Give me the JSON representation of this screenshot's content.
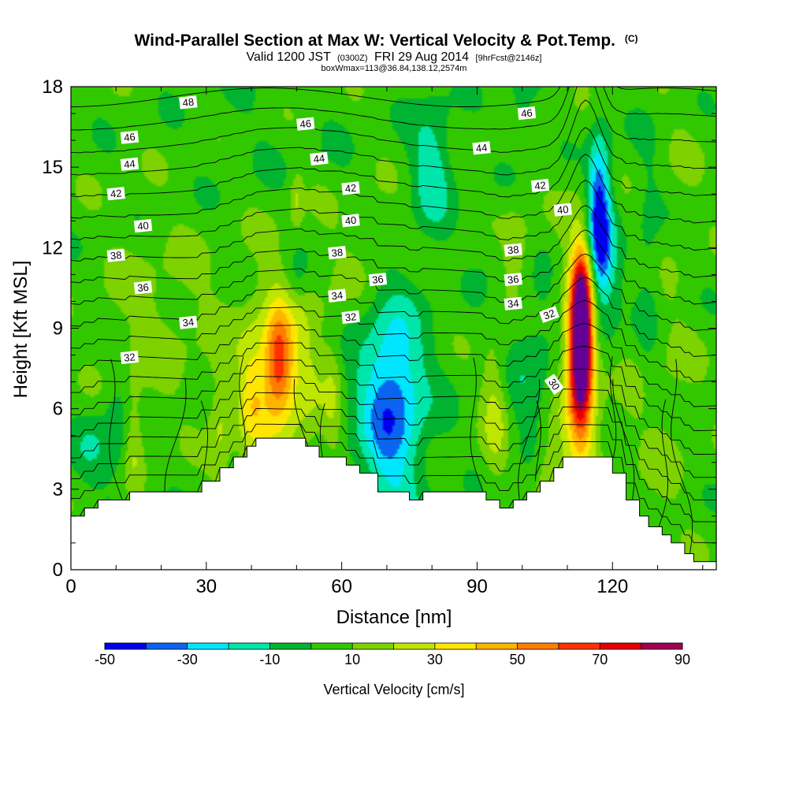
{
  "chart_data": {
    "type": "heatmap",
    "title": "Wind-Parallel Section at Max W: Vertical Velocity & Pot.Temp.",
    "title_mark": "(C)",
    "subtitle_parts": [
      "Valid 1200 JST",
      "(0300Z)",
      "FRI 29 Aug 2014",
      "[9hrFcst@2146z]"
    ],
    "subtitle2": "boxWmax=113@36.84,138.12,2574m",
    "xlabel": "Distance [nm]",
    "ylabel": "Height [Kft MSL]",
    "xlim": [
      0,
      143
    ],
    "ylim": [
      0,
      18
    ],
    "x_ticks": [
      "0",
      "30",
      "60",
      "90",
      "120"
    ],
    "x_tick_values": [
      0,
      30,
      60,
      90,
      120
    ],
    "y_ticks": [
      "0",
      "3",
      "6",
      "9",
      "12",
      "15",
      "18"
    ],
    "y_tick_values": [
      0,
      3,
      6,
      9,
      12,
      15,
      18
    ],
    "colorbar": {
      "label": "Vertical Velocity [cm/s]",
      "tick_labels": [
        "-50",
        "-30",
        "-10",
        "10",
        "30",
        "50",
        "70",
        "90"
      ],
      "tick_values": [
        -50,
        -30,
        -10,
        10,
        30,
        50,
        70,
        90
      ],
      "bins": [
        -50,
        -40,
        -30,
        -20,
        -10,
        0,
        10,
        20,
        30,
        40,
        50,
        60,
        70,
        80,
        90
      ],
      "colors": [
        "#0000f0",
        "#0a64f0",
        "#00e6ff",
        "#00e6aa",
        "#00b432",
        "#32c800",
        "#7dd200",
        "#bee600",
        "#ffe600",
        "#ffb400",
        "#ff7d00",
        "#ff3200",
        "#e60000",
        "#a00050",
        "#640096"
      ]
    },
    "terrain": [
      [
        0,
        2.0
      ],
      [
        3,
        2.0
      ],
      [
        3,
        2.3
      ],
      [
        6,
        2.3
      ],
      [
        6,
        2.6
      ],
      [
        13,
        2.6
      ],
      [
        13,
        2.9
      ],
      [
        29,
        2.9
      ],
      [
        29,
        3.3
      ],
      [
        33,
        3.3
      ],
      [
        33,
        3.8
      ],
      [
        36,
        3.8
      ],
      [
        36,
        4.2
      ],
      [
        39,
        4.2
      ],
      [
        39,
        4.6
      ],
      [
        41,
        4.6
      ],
      [
        41,
        4.9
      ],
      [
        52,
        4.9
      ],
      [
        52,
        4.6
      ],
      [
        55,
        4.6
      ],
      [
        55,
        4.2
      ],
      [
        61,
        4.2
      ],
      [
        61,
        3.9
      ],
      [
        64,
        3.9
      ],
      [
        64,
        3.6
      ],
      [
        68,
        3.6
      ],
      [
        68,
        2.9
      ],
      [
        75,
        2.9
      ],
      [
        75,
        2.6
      ],
      [
        78,
        2.6
      ],
      [
        78,
        2.9
      ],
      [
        92,
        2.9
      ],
      [
        92,
        2.6
      ],
      [
        95,
        2.6
      ],
      [
        95,
        2.3
      ],
      [
        98,
        2.3
      ],
      [
        98,
        2.6
      ],
      [
        101,
        2.6
      ],
      [
        101,
        2.9
      ],
      [
        104,
        2.9
      ],
      [
        104,
        3.3
      ],
      [
        107,
        3.3
      ],
      [
        107,
        3.8
      ],
      [
        109,
        3.8
      ],
      [
        109,
        4.2
      ],
      [
        120,
        4.2
      ],
      [
        120,
        3.6
      ],
      [
        123,
        3.6
      ],
      [
        123,
        2.6
      ],
      [
        126,
        2.6
      ],
      [
        126,
        2.0
      ],
      [
        128,
        2.0
      ],
      [
        128,
        1.6
      ],
      [
        131,
        1.6
      ],
      [
        131,
        1.3
      ],
      [
        133,
        1.3
      ],
      [
        133,
        1.0
      ],
      [
        136,
        1.0
      ],
      [
        136,
        0.6
      ],
      [
        138,
        0.6
      ],
      [
        138,
        0.3
      ],
      [
        143,
        0.3
      ]
    ],
    "w_features": [
      {
        "x": 113,
        "z": 8.5,
        "sx": 1.7,
        "sz": 2.0,
        "w": 108
      },
      {
        "x": 113,
        "z": 7.0,
        "sx": 3.2,
        "sz": 3.6,
        "w": 28
      },
      {
        "x": 113.5,
        "z": 10.8,
        "sx": 1.6,
        "sz": 1.0,
        "w": 18
      },
      {
        "x": 117,
        "z": 13.2,
        "sx": 1.7,
        "sz": 2.0,
        "w": -48
      },
      {
        "x": 118,
        "z": 11.0,
        "sx": 2.5,
        "sz": 2.2,
        "w": -20
      },
      {
        "x": 46,
        "z": 7.8,
        "sx": 2.2,
        "sz": 1.3,
        "w": 50
      },
      {
        "x": 45,
        "z": 6.8,
        "sx": 5.5,
        "sz": 3.2,
        "w": 18
      },
      {
        "x": 40,
        "z": 6.5,
        "sx": 2.0,
        "sz": 1.6,
        "w": 18
      },
      {
        "x": 71,
        "z": 6.3,
        "sx": 4.5,
        "sz": 2.6,
        "w": -32
      },
      {
        "x": 71,
        "z": 6.0,
        "sx": 7,
        "sz": 3.4,
        "w": -12
      },
      {
        "x": 80,
        "z": 15.0,
        "sx": 3.2,
        "sz": 1.7,
        "w": -22
      },
      {
        "x": 94,
        "z": 6.0,
        "sx": 2.0,
        "sz": 1.8,
        "w": 18
      },
      {
        "x": 98,
        "z": 11.8,
        "sx": 3.0,
        "sz": 1.2,
        "w": 18
      },
      {
        "x": 102,
        "z": 7.5,
        "sx": 4.0,
        "sz": 2.5,
        "w": -12
      },
      {
        "x": 106,
        "z": 3.6,
        "sx": 2.5,
        "sz": 1.2,
        "w": 18
      },
      {
        "x": 128,
        "z": 11.0,
        "sx": 2.0,
        "sz": 3.5,
        "w": -10
      },
      {
        "x": 5,
        "z": 4.6,
        "sx": 3,
        "sz": 1.0,
        "w": -13
      },
      {
        "x": 10,
        "z": 5.0,
        "sx": 2.0,
        "sz": 1.5,
        "w": -12
      },
      {
        "x": 14,
        "z": 5.0,
        "sx": 1.5,
        "sz": 1.4,
        "w": 15
      },
      {
        "x": 33,
        "z": 5.5,
        "sx": 1.8,
        "sz": 1.5,
        "w": 15
      },
      {
        "x": 50,
        "z": 13.8,
        "sx": 1.0,
        "sz": 0.7,
        "w": 15
      },
      {
        "x": 52,
        "z": 7.0,
        "sx": 3,
        "sz": 2.5,
        "w": 9
      },
      {
        "x": 58,
        "z": 6.5,
        "sx": 1.5,
        "sz": 2.0,
        "w": 12
      },
      {
        "x": 50,
        "z": 10.8,
        "sx": 2.0,
        "sz": 0.8,
        "w": -12
      },
      {
        "x": 95,
        "z": 11.8,
        "sx": 3,
        "sz": 0.8,
        "w": -12
      },
      {
        "x": 100,
        "z": 17.5,
        "sx": 1.8,
        "sz": 1.2,
        "w": -12
      },
      {
        "x": 135,
        "z": 15.0,
        "sx": 4,
        "sz": 3.5,
        "w": 3
      },
      {
        "x": 20,
        "z": 9.5,
        "sx": 10,
        "sz": 2.2,
        "w": 8
      },
      {
        "x": 65,
        "z": 11.5,
        "sx": 8,
        "sz": 2.0,
        "w": 7
      },
      {
        "x": 40,
        "z": 16.0,
        "sx": 8,
        "sz": 2.0,
        "w": -3
      },
      {
        "x": 60,
        "z": 14.5,
        "sx": 6,
        "sz": 3.0,
        "w": -2
      },
      {
        "x": 130,
        "z": 6.0,
        "sx": 6,
        "sz": 3.0,
        "w": 7
      }
    ],
    "isotherm_labels": [
      {
        "label": "48",
        "x": 26,
        "z": 17.4
      },
      {
        "label": "46",
        "x": 13,
        "z": 16.1
      },
      {
        "label": "44",
        "x": 13,
        "z": 15.1
      },
      {
        "label": "42",
        "x": 10,
        "z": 14.0
      },
      {
        "label": "40",
        "x": 16,
        "z": 12.8
      },
      {
        "label": "38",
        "x": 10,
        "z": 11.7
      },
      {
        "label": "36",
        "x": 16,
        "z": 10.5
      },
      {
        "label": "34",
        "x": 26,
        "z": 9.2
      },
      {
        "label": "32",
        "x": 13,
        "z": 7.9
      },
      {
        "label": "46",
        "x": 52,
        "z": 16.6
      },
      {
        "label": "44",
        "x": 55,
        "z": 15.3
      },
      {
        "label": "42",
        "x": 62,
        "z": 14.2
      },
      {
        "label": "40",
        "x": 62,
        "z": 13.0
      },
      {
        "label": "38",
        "x": 59,
        "z": 11.8
      },
      {
        "label": "36",
        "x": 68,
        "z": 10.8
      },
      {
        "label": "34",
        "x": 59,
        "z": 10.2
      },
      {
        "label": "32",
        "x": 62,
        "z": 9.4
      },
      {
        "label": "46",
        "x": 101,
        "z": 17.0
      },
      {
        "label": "44",
        "x": 91,
        "z": 15.7
      },
      {
        "label": "42",
        "x": 104,
        "z": 14.3
      },
      {
        "label": "40",
        "x": 109,
        "z": 13.4
      },
      {
        "label": "38",
        "x": 98,
        "z": 11.9
      },
      {
        "label": "36",
        "x": 98,
        "z": 10.8
      },
      {
        "label": "34",
        "x": 98,
        "z": 9.9
      },
      {
        "label": "32",
        "x": 106,
        "z": 9.5
      },
      {
        "label": "30",
        "x": 107,
        "z": 6.9
      }
    ]
  }
}
